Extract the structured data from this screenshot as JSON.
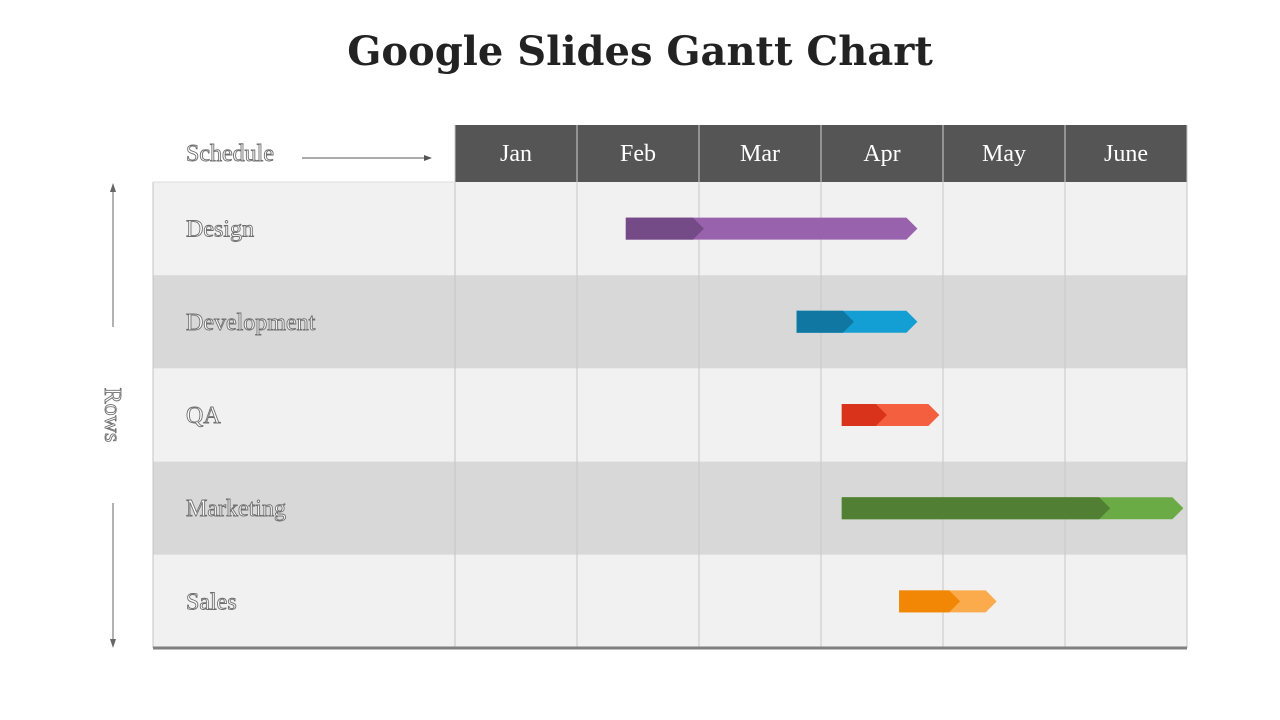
{
  "title": "Google Slides Gantt Chart",
  "chart_data": {
    "type": "gantt",
    "title": "Google Slides Gantt Chart",
    "header_label": "Schedule",
    "axis_label": "Rows",
    "months": [
      "Jan",
      "Feb",
      "Mar",
      "Apr",
      "May",
      "June"
    ],
    "tasks": [
      {
        "name": "Design",
        "start": 1.4,
        "split": 1.95,
        "end": 3.7,
        "color_dark": "#744a87",
        "color_light": "#9962ad"
      },
      {
        "name": "Development",
        "start": 2.8,
        "split": 3.18,
        "end": 3.7,
        "color_dark": "#0f77a1",
        "color_light": "#139fd4"
      },
      {
        "name": "QA",
        "start": 3.17,
        "split": 3.45,
        "end": 3.88,
        "color_dark": "#d9341b",
        "color_light": "#f4603f"
      },
      {
        "name": "Marketing",
        "start": 3.17,
        "split": 5.28,
        "end": 5.88,
        "color_dark": "#517f33",
        "color_light": "#6aab45"
      },
      {
        "name": "Sales",
        "start": 3.64,
        "split": 4.05,
        "end": 4.35,
        "color_dark": "#f18705",
        "color_light": "#fbab4c"
      }
    ],
    "colors": {
      "header_bg": "#555555",
      "row_light": "#f1f1f1",
      "row_dark": "#d8d8d8",
      "grid": "#c4c4c4"
    }
  }
}
